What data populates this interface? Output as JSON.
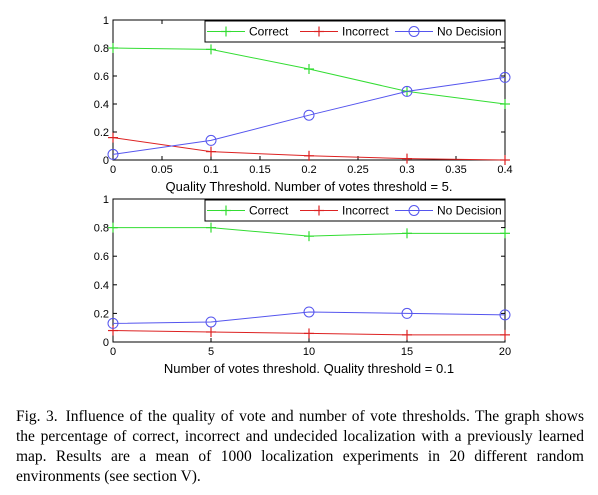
{
  "chart_data": [
    {
      "type": "line",
      "xlabel": "Quality Threshold. Number of votes threshold = 5.",
      "ylabel": "",
      "xlim": [
        0,
        0.4
      ],
      "ylim": [
        0,
        1
      ],
      "xticks": [
        "0",
        "0.05",
        "0.1",
        "0.15",
        "0.2",
        "0.25",
        "0.3",
        "0.35",
        "0.4"
      ],
      "yticks": [
        "0",
        "0.2",
        "0.4",
        "0.6",
        "0.8",
        "1"
      ],
      "x": [
        0,
        0.1,
        0.2,
        0.3,
        0.4
      ],
      "grid": false,
      "legend_position": "top-right",
      "series": [
        {
          "name": "Correct",
          "marker": "plus",
          "color": "#33dd33",
          "values": [
            0.8,
            0.79,
            0.65,
            0.49,
            0.4
          ]
        },
        {
          "name": "Incorrect",
          "marker": "plus",
          "color": "#dd2222",
          "values": [
            0.16,
            0.06,
            0.03,
            0.01,
            0.0
          ]
        },
        {
          "name": "No Decision",
          "marker": "circle",
          "color": "#5555ee",
          "values": [
            0.04,
            0.14,
            0.32,
            0.49,
            0.59
          ]
        }
      ]
    },
    {
      "type": "line",
      "xlabel": "Number of votes threshold. Quality threshold = 0.1",
      "ylabel": "",
      "xlim": [
        0,
        20
      ],
      "ylim": [
        0,
        1
      ],
      "xticks": [
        "0",
        "5",
        "10",
        "15",
        "20"
      ],
      "yticks": [
        "0",
        "0.2",
        "0.4",
        "0.6",
        "0.8",
        "1"
      ],
      "x": [
        0,
        5,
        10,
        15,
        20
      ],
      "grid": false,
      "legend_position": "top-right",
      "series": [
        {
          "name": "Correct",
          "marker": "plus",
          "color": "#33dd33",
          "values": [
            0.8,
            0.8,
            0.74,
            0.76,
            0.76
          ]
        },
        {
          "name": "Incorrect",
          "marker": "plus",
          "color": "#dd2222",
          "values": [
            0.08,
            0.07,
            0.06,
            0.05,
            0.05
          ]
        },
        {
          "name": "No Decision",
          "marker": "circle",
          "color": "#5555ee",
          "values": [
            0.13,
            0.14,
            0.21,
            0.2,
            0.19
          ]
        }
      ]
    }
  ],
  "caption": {
    "label": "Fig. 3.",
    "text": "Influence of the quality of vote and number of vote thresholds. The graph shows the percentage of correct, incorrect and undecided localization with a previously learned map. Results are a mean of 1000 localization experiments in 20 different random environments (see section V)."
  }
}
